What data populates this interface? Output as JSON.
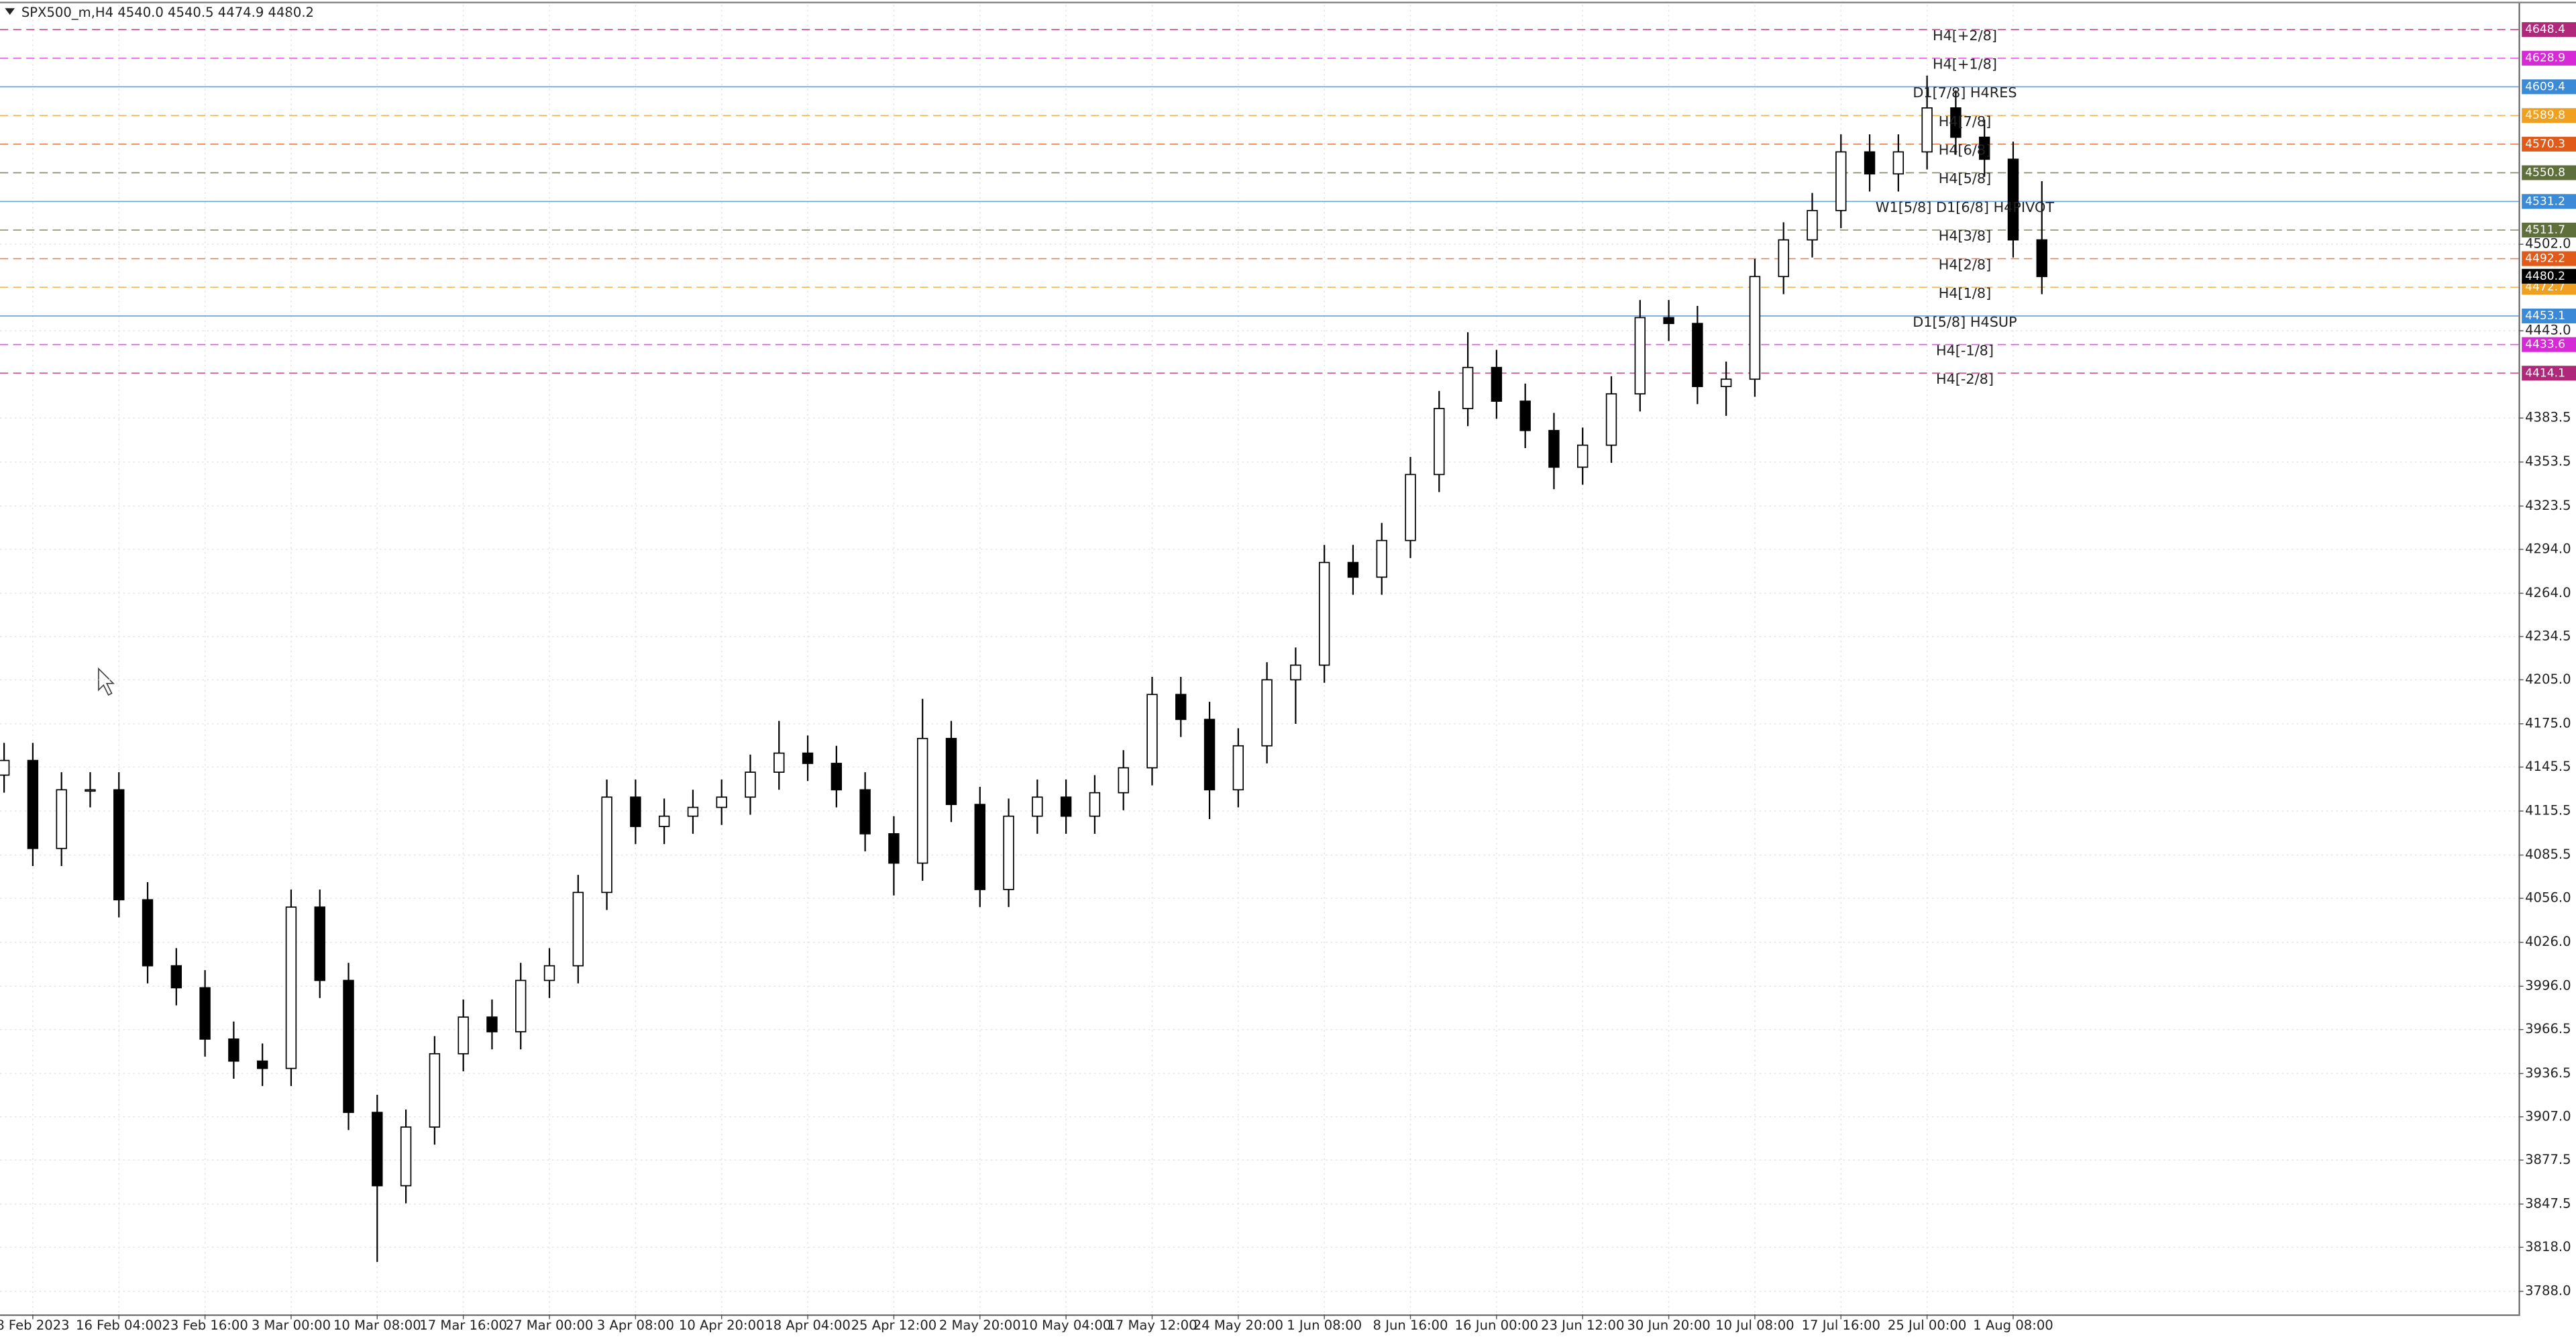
{
  "chart_data": {
    "type": "candlestick",
    "header": "SPX500_m,H4  4540.0 4540.5 4474.9 4480.2",
    "x_labels": [
      "8 Feb 2023",
      "16 Feb 04:00",
      "23 Feb 16:00",
      "3 Mar 00:00",
      "10 Mar 08:00",
      "17 Mar 16:00",
      "27 Mar 00:00",
      "3 Apr 08:00",
      "10 Apr 20:00",
      "18 Apr 04:00",
      "25 Apr 12:00",
      "2 May 20:00",
      "10 May 04:00",
      "17 May 12:00",
      "24 May 20:00",
      "1 Jun 08:00",
      "8 Jun 16:00",
      "16 Jun 00:00",
      "23 Jun 12:00",
      "30 Jun 20:00",
      "10 Jul 08:00",
      "17 Jul 16:00",
      "25 Jul 00:00",
      "1 Aug 08:00"
    ],
    "open": [
      4140,
      4150,
      4090,
      4130,
      4130,
      4055,
      4010,
      3995,
      3960,
      3945,
      3940,
      4050,
      4000,
      3910,
      3860,
      3900,
      3950,
      3975,
      3965,
      4000,
      4010,
      4060,
      4125,
      4105,
      4112,
      4118,
      4125,
      4142,
      4155,
      4148,
      4130,
      4100,
      4080,
      4165,
      4120,
      4062,
      4112,
      4125,
      4112,
      4128,
      4145,
      4195,
      4178,
      4130,
      4160,
      4205,
      4215,
      4285,
      4275,
      4300,
      4345,
      4390,
      4418,
      4395,
      4375,
      4350,
      4365,
      4400,
      4452,
      4448,
      4405,
      4410,
      4480,
      4505,
      4525,
      4565,
      4550,
      4565,
      4595,
      4575,
      4560,
      4505
    ],
    "high": [
      4162,
      4162,
      4142,
      4142,
      4142,
      4067,
      4022,
      4007,
      3972,
      3957,
      4062,
      4062,
      4012,
      3922,
      3912,
      3962,
      3987,
      3987,
      4012,
      4022,
      4072,
      4137,
      4137,
      4124,
      4130,
      4137,
      4154,
      4177,
      4167,
      4160,
      4142,
      4112,
      4192,
      4177,
      4132,
      4124,
      4137,
      4137,
      4140,
      4157,
      4207,
      4207,
      4190,
      4172,
      4217,
      4227,
      4297,
      4297,
      4312,
      4357,
      4402,
      4442,
      4430,
      4407,
      4387,
      4377,
      4412,
      4464,
      4464,
      4460,
      4422,
      4492,
      4517,
      4537,
      4577,
      4577,
      4577,
      4617,
      4607,
      4587,
      4572,
      4545
    ],
    "low": [
      4128,
      4078,
      4078,
      4118,
      4043,
      3998,
      3983,
      3948,
      3933,
      3928,
      3928,
      3988,
      3898,
      3808,
      3848,
      3888,
      3938,
      3953,
      3953,
      3988,
      3998,
      4048,
      4093,
      4093,
      4100,
      4106,
      4113,
      4130,
      4136,
      4118,
      4088,
      4058,
      4068,
      4108,
      4050,
      4050,
      4100,
      4100,
      4100,
      4116,
      4133,
      4166,
      4110,
      4118,
      4148,
      4175,
      4203,
      4263,
      4263,
      4288,
      4333,
      4378,
      4383,
      4363,
      4335,
      4338,
      4353,
      4388,
      4436,
      4393,
      4385,
      4398,
      4468,
      4493,
      4513,
      4538,
      4538,
      4553,
      4563,
      4548,
      4493,
      4468
    ],
    "close": [
      4150,
      4090,
      4130,
      4130,
      4055,
      4010,
      3995,
      3960,
      3945,
      3940,
      4050,
      4000,
      3910,
      3860,
      3900,
      3950,
      3975,
      3965,
      4000,
      4010,
      4060,
      4125,
      4105,
      4112,
      4118,
      4125,
      4142,
      4155,
      4148,
      4130,
      4100,
      4080,
      4165,
      4120,
      4062,
      4112,
      4125,
      4112,
      4128,
      4145,
      4195,
      4178,
      4130,
      4160,
      4205,
      4215,
      4285,
      4275,
      4300,
      4345,
      4390,
      4418,
      4395,
      4375,
      4350,
      4365,
      4400,
      4452,
      4448,
      4405,
      4410,
      4480,
      4505,
      4525,
      4565,
      4550,
      4565,
      4595,
      4575,
      4560,
      4505,
      4480
    ],
    "ylim": [
      3772.3,
      4665.2
    ],
    "yticks": [
      {
        "value": 3788.0,
        "label": "3788.0"
      },
      {
        "value": 3818.0,
        "label": "3818.0"
      },
      {
        "value": 3847.5,
        "label": "3847.5"
      },
      {
        "value": 3877.5,
        "label": "3877.5"
      },
      {
        "value": 3907.0,
        "label": "3907.0"
      },
      {
        "value": 3936.5,
        "label": "3936.5"
      },
      {
        "value": 3966.5,
        "label": "3966.5"
      },
      {
        "value": 3996.0,
        "label": "3996.0"
      },
      {
        "value": 4026.0,
        "label": "4026.0"
      },
      {
        "value": 4056.0,
        "label": "4056.0"
      },
      4085.5,
      4115.5,
      4145.5,
      {
        "value": 4175.0,
        "label": "4175.0"
      },
      {
        "value": 4205.0,
        "label": "4205.0"
      },
      4234.5,
      {
        "value": 4264.0,
        "label": "4264.0"
      },
      {
        "value": 4294.0,
        "label": "4294.0"
      },
      4323.5,
      4353.5,
      4383.5,
      {
        "value": 4443.0,
        "label": "4443.0"
      },
      {
        "value": 4502.0,
        "label": "4502.0"
      }
    ],
    "grid": true,
    "candle_color": "#000000",
    "current_price": 4480.2,
    "current_price_color": "#000000",
    "levels": [
      {
        "name": "H4[+2/8]",
        "price": 4648.4,
        "color": "#b0287a",
        "style": "dashed"
      },
      {
        "name": "H4[+1/8]",
        "price": 4628.9,
        "color": "#d62ad6",
        "style": "dashed"
      },
      {
        "name": "D1[7/8] H4RES",
        "price": 4609.4,
        "color": "#3a8ad8",
        "style": "solid"
      },
      {
        "name": "H4[7/8]",
        "price": 4589.8,
        "color": "#f0a020",
        "style": "dashed"
      },
      {
        "name": "H4[6/8]",
        "price": 4570.3,
        "color": "#e05a1a",
        "style": "dashed"
      },
      {
        "name": "H4[5/8]",
        "price": 4550.8,
        "color": "#5f6f3c",
        "style": "dashed"
      },
      {
        "name": "W1[5/8] D1[6/8] H4PIVOT",
        "price": 4531.2,
        "color": "#3a8ad8",
        "style": "solid"
      },
      {
        "name": "H4[3/8]",
        "price": 4511.7,
        "color": "#5f6f3c",
        "style": "dashed"
      },
      {
        "name": "H4[2/8]",
        "price": 4492.2,
        "color": "#e05a1a",
        "style": "dashed"
      },
      {
        "name": "H4[1/8]",
        "price": 4472.7,
        "color": "#f0a020",
        "style": "dashed"
      },
      {
        "name": "D1[5/8] H4SUP",
        "price": 4453.1,
        "color": "#3a8ad8",
        "style": "solid"
      },
      {
        "name": "H4[-1/8]",
        "price": 4433.6,
        "color": "#d62ad6",
        "style": "dashed"
      },
      {
        "name": "H4[-2/8]",
        "price": 4414.1,
        "color": "#b0287a",
        "style": "dashed"
      }
    ]
  }
}
